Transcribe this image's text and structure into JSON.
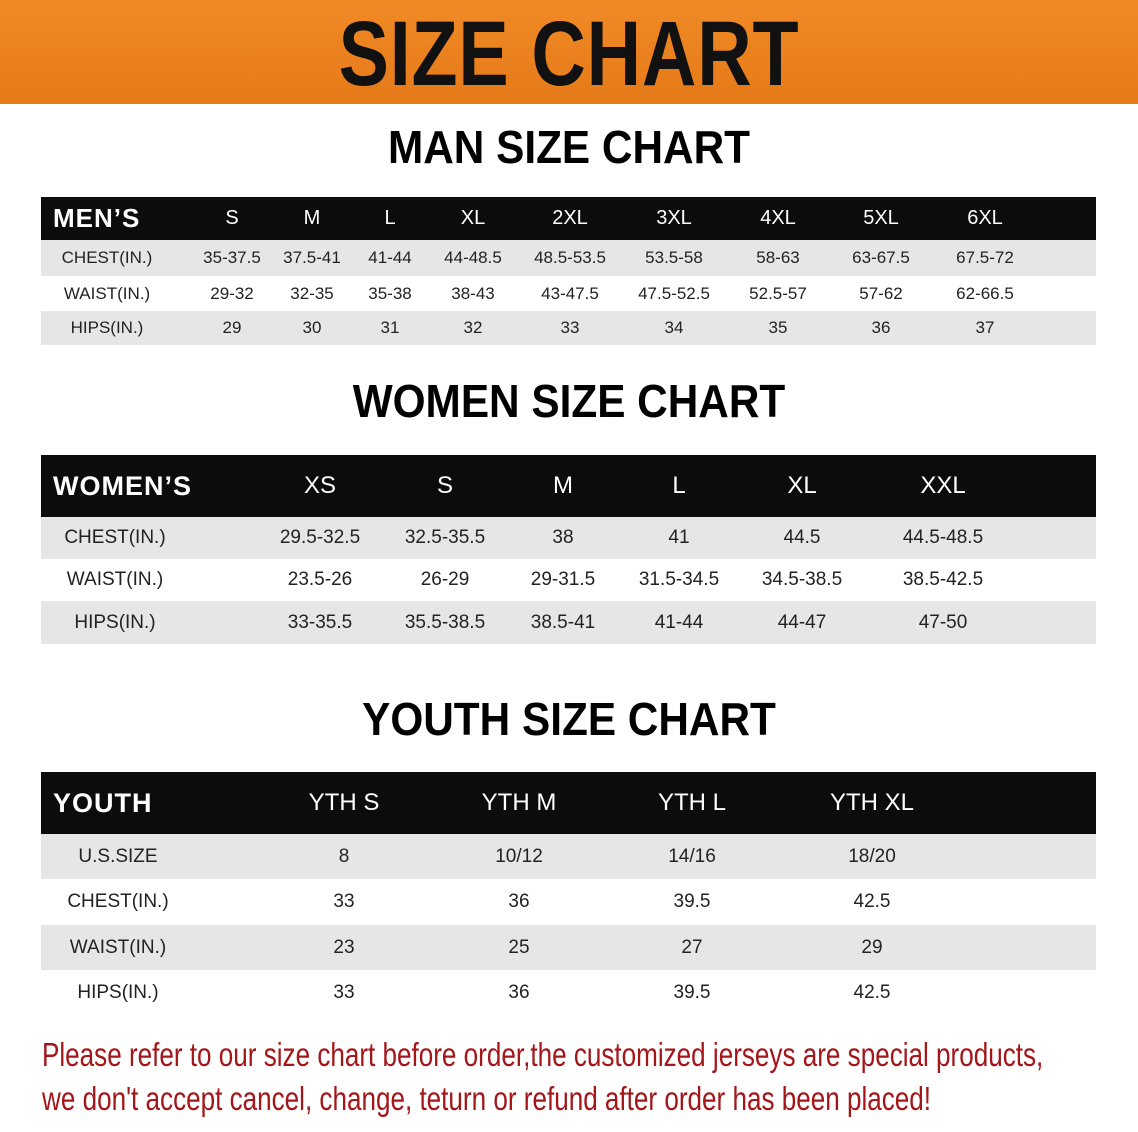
{
  "banner": {
    "title": "SIZE CHART",
    "color": "#ec8220"
  },
  "men": {
    "title": "MAN SIZE CHART",
    "header_label": "MEN’S",
    "sizes": [
      "S",
      "M",
      "L",
      "XL",
      "2XL",
      "3XL",
      "4XL",
      "5XL",
      "6XL"
    ],
    "rows": [
      {
        "label": "CHEST(IN.)",
        "values": [
          "35-37.5",
          "37.5-41",
          "41-44",
          "44-48.5",
          "48.5-53.5",
          "53.5-58",
          "58-63",
          "63-67.5",
          "67.5-72"
        ]
      },
      {
        "label": "WAIST(IN.)",
        "values": [
          "29-32",
          "32-35",
          "35-38",
          "38-43",
          "43-47.5",
          "47.5-52.5",
          "52.5-57",
          "57-62",
          "62-66.5"
        ]
      },
      {
        "label": "HIPS(IN.)",
        "values": [
          "29",
          "30",
          "31",
          "32",
          "33",
          "34",
          "35",
          "36",
          "37"
        ]
      }
    ]
  },
  "women": {
    "title": "WOMEN SIZE CHART",
    "header_label": "WOMEN’S",
    "sizes": [
      "XS",
      "S",
      "M",
      "L",
      "XL",
      "XXL"
    ],
    "rows": [
      {
        "label": "CHEST(IN.)",
        "values": [
          "29.5-32.5",
          "32.5-35.5",
          "38",
          "41",
          "44.5",
          "44.5-48.5"
        ]
      },
      {
        "label": "WAIST(IN.)",
        "values": [
          "23.5-26",
          "26-29",
          "29-31.5",
          "31.5-34.5",
          "34.5-38.5",
          "38.5-42.5"
        ]
      },
      {
        "label": "HIPS(IN.)",
        "values": [
          "33-35.5",
          "35.5-38.5",
          "38.5-41",
          "41-44",
          "44-47",
          "47-50"
        ]
      }
    ]
  },
  "youth": {
    "title": "YOUTH SIZE CHART",
    "header_label": "YOUTH",
    "sizes": [
      "YTH S",
      "YTH M",
      "YTH L",
      "YTH XL"
    ],
    "rows": [
      {
        "label": "U.S.SIZE",
        "values": [
          "8",
          "10/12",
          "14/16",
          "18/20"
        ]
      },
      {
        "label": "CHEST(IN.)",
        "values": [
          "33",
          "36",
          "39.5",
          "42.5"
        ]
      },
      {
        "label": "WAIST(IN.)",
        "values": [
          "23",
          "25",
          "27",
          "29"
        ]
      },
      {
        "label": "HIPS(IN.)",
        "values": [
          "33",
          "36",
          "39.5",
          "42.5"
        ]
      }
    ]
  },
  "notice": {
    "line1": "Please refer to our size chart before order,the customized jerseys are special products,",
    "line2": "we don't accept cancel, change, teturn or refund after order has been placed!",
    "color": "#a3161a"
  }
}
